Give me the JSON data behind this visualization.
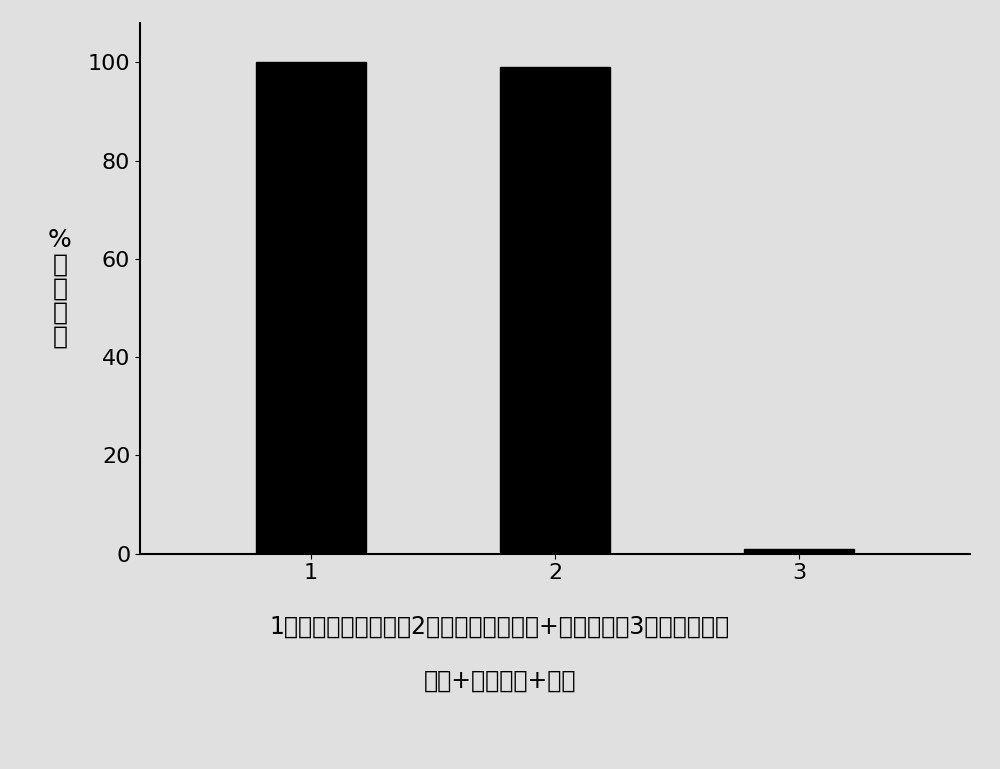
{
  "categories": [
    "1",
    "2",
    "3"
  ],
  "values": [
    100,
    99,
    1
  ],
  "bar_color": "#000000",
  "bar_width": 0.45,
  "ylabel": "%\n）\n率\n活\n成",
  "ylim": [
    0,
    108
  ],
  "yticks": [
    0,
    20,
    40,
    60,
    80,
    100
  ],
  "background_color": "#e8e8e8",
  "caption_line1": "1：磷酸盐缓冲溶液；2：磷酸盐缓冲溶液+碳量子点；3：磷酸盐缓冲",
  "caption_line2": "溶液+碳量子点+光照",
  "label_fontsize": 18,
  "tick_fontsize": 16,
  "caption_fontsize": 17
}
